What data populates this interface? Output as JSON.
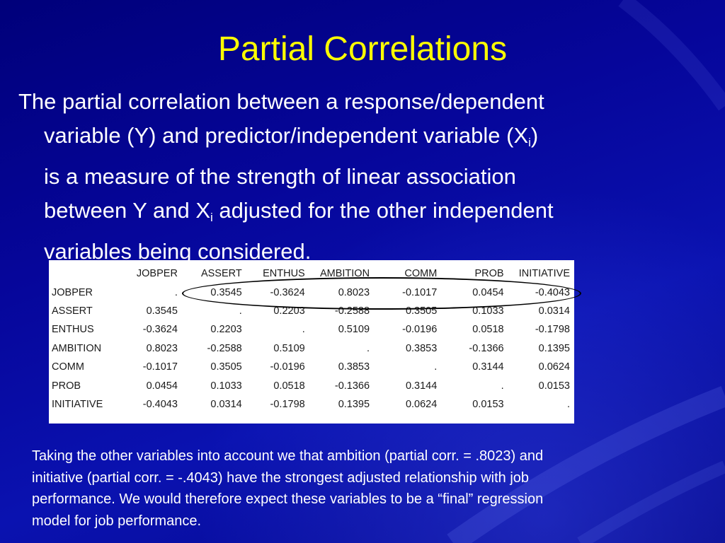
{
  "slide": {
    "title": "Partial Correlations",
    "body": {
      "line1": "The partial correlation between a response/dependent",
      "line2_before": "variable (Y) and predictor/independent variable (X",
      "line2_sub": "i",
      "line2_after": ")",
      "line3": "is a measure of  the strength of linear association",
      "line4_before": "between Y and X",
      "line4_sub": "i",
      "line4_after": " adjusted for the other independent",
      "line5": "variables being considered."
    },
    "table": {
      "columns": [
        "JOBPER",
        "ASSERT",
        "ENTHUS",
        "AMBITION",
        "COMM",
        "PROB",
        "INITIATIVE"
      ],
      "rows": [
        {
          "label": "JOBPER",
          "values": [
            ".",
            "0.3545",
            "-0.3624",
            "0.8023",
            "-0.1017",
            "0.0454",
            "-0.4043"
          ]
        },
        {
          "label": "ASSERT",
          "values": [
            "0.3545",
            ".",
            "0.2203",
            "-0.2588",
            "0.3505",
            "0.1033",
            "0.0314"
          ]
        },
        {
          "label": "ENTHUS",
          "values": [
            "-0.3624",
            "0.2203",
            ".",
            "0.5109",
            "-0.0196",
            "0.0518",
            "-0.1798"
          ]
        },
        {
          "label": "AMBITION",
          "values": [
            "0.8023",
            "-0.2588",
            "0.5109",
            ".",
            "0.3853",
            "-0.1366",
            "0.1395"
          ]
        },
        {
          "label": "COMM",
          "values": [
            "-0.1017",
            "0.3505",
            "-0.0196",
            "0.3853",
            ".",
            "0.3144",
            "0.0624"
          ]
        },
        {
          "label": "PROB",
          "values": [
            "0.0454",
            "0.1033",
            "0.0518",
            "-0.1366",
            "0.3144",
            ".",
            "0.0153"
          ]
        },
        {
          "label": "INITIATIVE",
          "values": [
            "-0.4043",
            "0.0314",
            "-0.1798",
            "0.1395",
            "0.0624",
            "0.0153",
            "."
          ]
        }
      ]
    },
    "conclusion": {
      "line1": "Taking the other variables into account we that ambition (partial corr. = .8023) and",
      "line2": "initiative (partial corr. = -.4043) have the strongest adjusted relationship with job",
      "line3": "performance.  We would therefore expect these variables to be a “final” regression",
      "line4": "model for job performance."
    },
    "colors": {
      "title": "#ffff00",
      "text": "#ffffff",
      "background": "#06069a",
      "table_background": "#ffffff"
    }
  }
}
